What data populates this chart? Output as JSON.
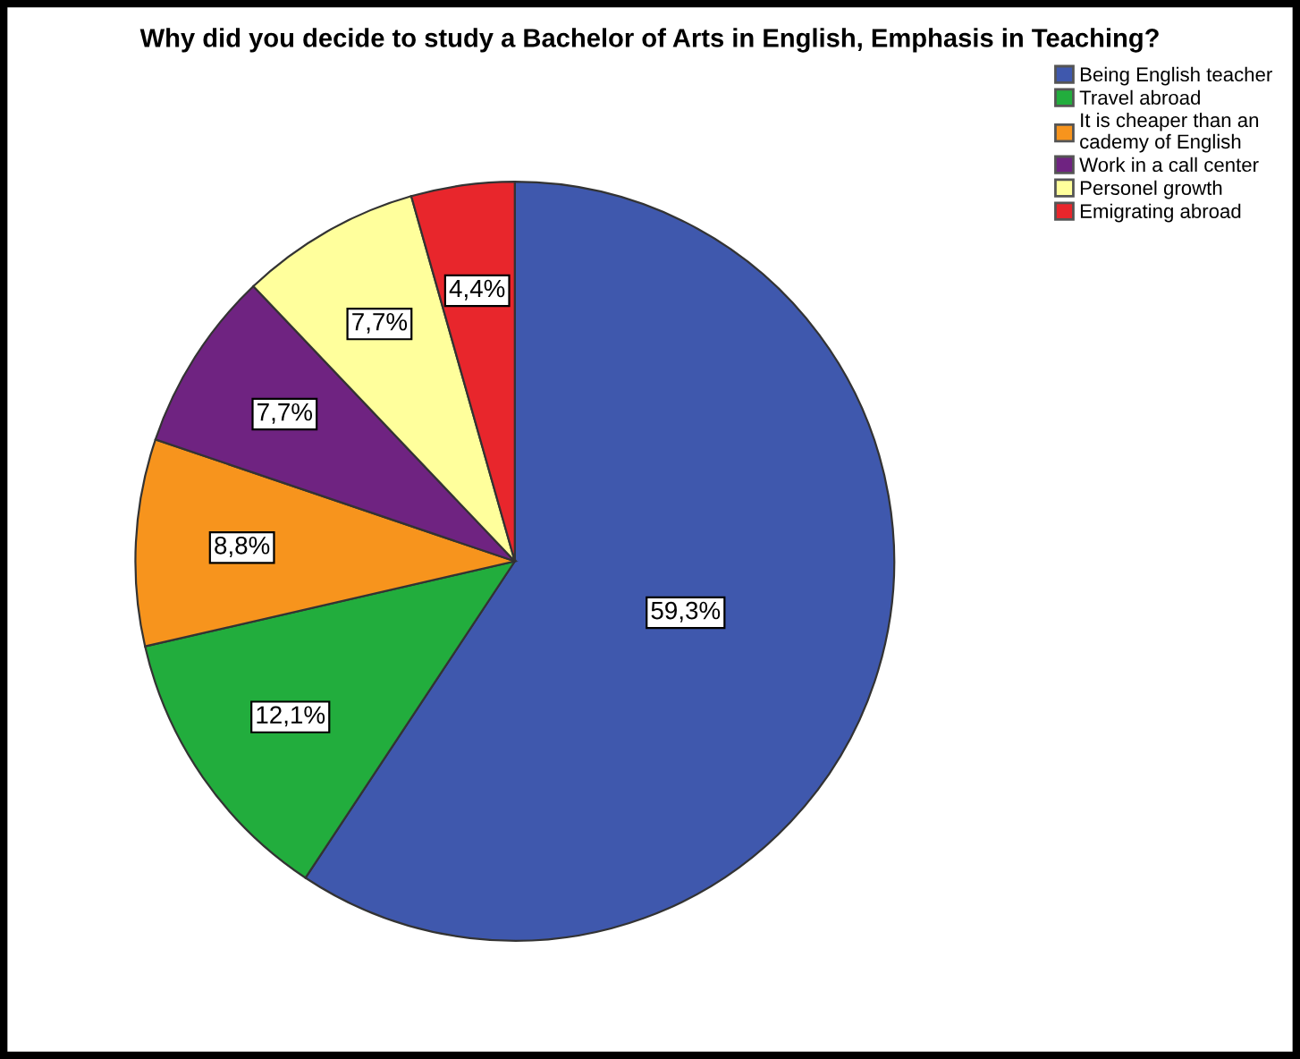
{
  "chart_data": {
    "type": "pie",
    "title": "Why did you decide to study a Bachelor of Arts in English, Emphasis in Teaching?",
    "categories": [
      "Being English teacher",
      "Travel abroad",
      "It is cheaper than an\ncademy of English",
      "Work in a call center",
      "Personel growth",
      "Emigrating abroad"
    ],
    "values": [
      59.3,
      12.1,
      8.8,
      7.7,
      7.7,
      4.4
    ],
    "value_labels": [
      "59,3%",
      "12,1%",
      "8,8%",
      "7,7%",
      "7,7%",
      "4,4%"
    ],
    "colors": [
      "#3f58ad",
      "#22ad3d",
      "#f7941d",
      "#6f2381",
      "#ffff9c",
      "#e8262c"
    ],
    "legend": "top right"
  }
}
